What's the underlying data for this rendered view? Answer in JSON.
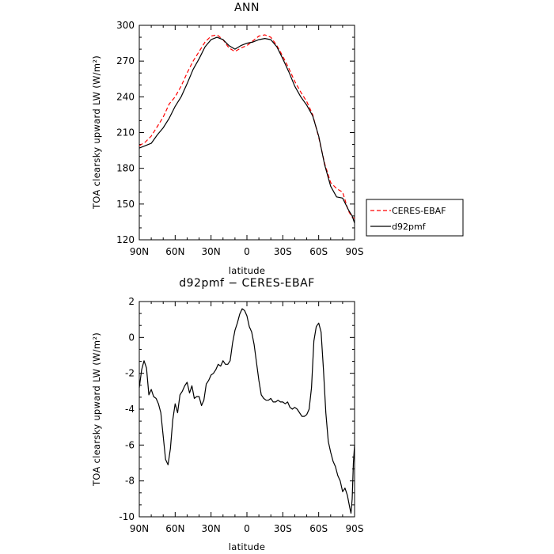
{
  "chart_data": [
    {
      "type": "line",
      "title": "ANN",
      "xlabel": "latitude",
      "ylabel": "TOA clearsky upward LW (W/m²)",
      "xticks": [
        "90N",
        "60N",
        "30N",
        "0",
        "30S",
        "60S",
        "90S"
      ],
      "yticks": [
        120,
        150,
        180,
        210,
        240,
        270,
        300
      ],
      "xlim": [
        90,
        -90
      ],
      "ylim": [
        120,
        300
      ],
      "legend_position": "right",
      "series": [
        {
          "name": "CERES-EBAF",
          "color": "#ff0000",
          "dash": "dashed",
          "x": [
            90,
            85,
            80,
            75,
            70,
            65,
            60,
            55,
            50,
            45,
            40,
            35,
            30,
            25,
            20,
            15,
            10,
            5,
            0,
            -5,
            -10,
            -15,
            -20,
            -25,
            -30,
            -35,
            -40,
            -45,
            -50,
            -55,
            -60,
            -65,
            -70,
            -75,
            -80,
            -85,
            -88,
            -90
          ],
          "y": [
            199,
            202,
            207,
            215,
            223,
            234,
            240,
            249,
            260,
            270,
            278,
            286,
            291,
            292,
            288,
            281,
            278,
            281,
            283,
            287,
            291,
            292,
            290,
            283,
            274,
            264,
            253,
            244,
            236,
            225,
            206,
            184,
            168,
            163,
            160,
            144,
            139,
            138
          ]
        },
        {
          "name": "d92pmf",
          "color": "#000000",
          "dash": "solid",
          "x": [
            90,
            85,
            80,
            75,
            70,
            65,
            60,
            55,
            50,
            45,
            40,
            35,
            30,
            25,
            20,
            15,
            10,
            5,
            0,
            -5,
            -10,
            -15,
            -20,
            -25,
            -30,
            -35,
            -40,
            -45,
            -50,
            -55,
            -60,
            -65,
            -70,
            -75,
            -80,
            -85,
            -88,
            -90
          ],
          "y": [
            197,
            199,
            201,
            208,
            214,
            222,
            232,
            240,
            251,
            263,
            272,
            282,
            288,
            290,
            288,
            283,
            280,
            283,
            285,
            286,
            288,
            289,
            288,
            282,
            272,
            261,
            249,
            240,
            233,
            224,
            207,
            183,
            165,
            156,
            155,
            145,
            140,
            134
          ]
        }
      ]
    },
    {
      "type": "line",
      "title": "d92pmf − CERES-EBAF",
      "xlabel": "latitude",
      "ylabel": "TOA clearsky upward LW (W/m²)",
      "xticks": [
        "90N",
        "60N",
        "30N",
        "0",
        "30S",
        "60S",
        "90S"
      ],
      "yticks": [
        -10,
        -8,
        -6,
        -4,
        -2,
        0,
        2
      ],
      "xlim": [
        90,
        -90
      ],
      "ylim": [
        -10,
        2
      ],
      "series": [
        {
          "name": "",
          "color": "#000000",
          "dash": "solid",
          "x": [
            90,
            88,
            86,
            84,
            82,
            80,
            78,
            76,
            74,
            72,
            70,
            68,
            66,
            64,
            62,
            60,
            58,
            56,
            54,
            52,
            50,
            48,
            46,
            44,
            42,
            40,
            38,
            36,
            34,
            32,
            30,
            28,
            26,
            24,
            22,
            20,
            18,
            16,
            14,
            12,
            10,
            8,
            6,
            4,
            2,
            0,
            -2,
            -4,
            -6,
            -8,
            -10,
            -12,
            -14,
            -16,
            -18,
            -20,
            -22,
            -24,
            -26,
            -28,
            -30,
            -32,
            -34,
            -36,
            -38,
            -40,
            -42,
            -44,
            -46,
            -48,
            -50,
            -52,
            -54,
            -56,
            -58,
            -60,
            -62,
            -64,
            -66,
            -68,
            -70,
            -72,
            -74,
            -76,
            -78,
            -80,
            -82,
            -84,
            -86,
            -87,
            -88,
            -89,
            -90
          ],
          "y": [
            -2.8,
            -1.8,
            -1.3,
            -1.7,
            -3.2,
            -2.9,
            -3.3,
            -3.4,
            -3.7,
            -4.2,
            -5.5,
            -6.8,
            -7.1,
            -6.2,
            -4.6,
            -3.7,
            -4.2,
            -3.2,
            -3.0,
            -2.7,
            -2.5,
            -3.1,
            -2.7,
            -3.4,
            -3.3,
            -3.3,
            -3.8,
            -3.5,
            -2.6,
            -2.4,
            -2.1,
            -2.0,
            -1.8,
            -1.5,
            -1.6,
            -1.3,
            -1.5,
            -1.5,
            -1.3,
            -0.3,
            0.4,
            0.8,
            1.3,
            1.6,
            1.5,
            1.2,
            0.6,
            0.3,
            -0.4,
            -1.4,
            -2.4,
            -3.2,
            -3.4,
            -3.5,
            -3.5,
            -3.4,
            -3.6,
            -3.6,
            -3.5,
            -3.6,
            -3.6,
            -3.7,
            -3.6,
            -3.9,
            -4.0,
            -3.9,
            -4.0,
            -4.2,
            -4.4,
            -4.4,
            -4.3,
            -4.0,
            -2.8,
            -0.2,
            0.6,
            0.8,
            0.3,
            -1.8,
            -4.2,
            -5.8,
            -6.4,
            -6.9,
            -7.2,
            -7.7,
            -8.0,
            -8.6,
            -8.4,
            -8.8,
            -9.5,
            -9.8,
            -9.0,
            -7.0,
            -6.0
          ]
        }
      ]
    }
  ]
}
